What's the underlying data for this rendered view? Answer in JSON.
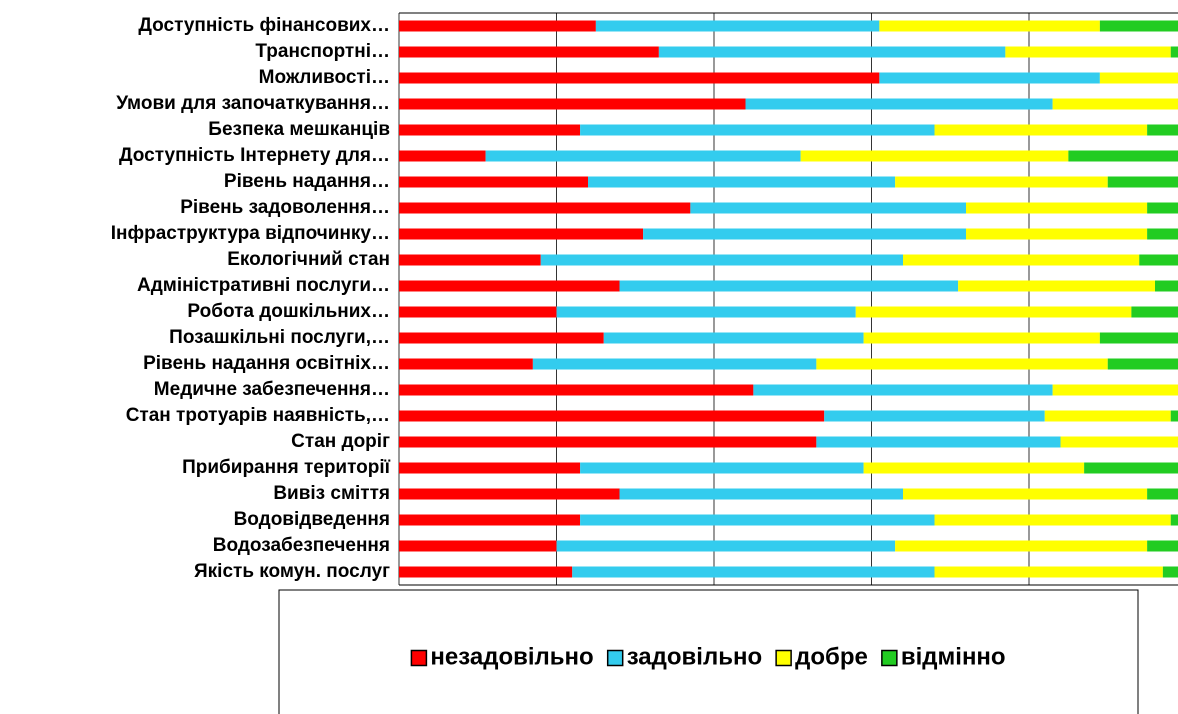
{
  "chart_data": {
    "type": "stacked_bar_horizontal",
    "categories": [
      "Доступність фінансових…",
      "Транспортні…",
      "Можливості…",
      "Умови для започаткування…",
      "Безпека мешканців",
      "Доступність Інтернету для…",
      "Рівень надання…",
      "Рівень задоволення…",
      "Інфраструктура відпочинку…",
      "Екологічний стан",
      "Адміністративні послуги…",
      "Робота дошкільних…",
      "Позашкільні послуги,…",
      "Рівень надання освітніх…",
      "Медичне забезпечення…",
      "Стан тротуарів наявність,…",
      "Стан доріг",
      "Прибирання території",
      "Вивіз сміття",
      "Водовідведення",
      "Водозабезпечення",
      "Якість комун. послуг"
    ],
    "series": [
      {
        "name": "незадовільно",
        "color": "#ff0000",
        "values": [
          25,
          33,
          61,
          44,
          23,
          11,
          24,
          37,
          31,
          18,
          28,
          20,
          26,
          17,
          45,
          54,
          53,
          23,
          28,
          23,
          20,
          22
        ]
      },
      {
        "name": "задовільно",
        "color": "#33ccee",
        "values": [
          36,
          44,
          28,
          39,
          45,
          40,
          39,
          35,
          41,
          46,
          43,
          38,
          33,
          36,
          38,
          28,
          31,
          36,
          36,
          45,
          43,
          46
        ]
      },
      {
        "name": "добре",
        "color": "#ffff00",
        "values": [
          28,
          21,
          10,
          16,
          27,
          34,
          27,
          23,
          23,
          30,
          25,
          35,
          30,
          37,
          16,
          16,
          16,
          28,
          31,
          30,
          32,
          29
        ]
      },
      {
        "name": "відмінно",
        "color": "#22cc22",
        "values": [
          11,
          2,
          1,
          1,
          5,
          15,
          10,
          5,
          5,
          6,
          4,
          7,
          11,
          10,
          1,
          2,
          0,
          13,
          5,
          2,
          5,
          3
        ]
      }
    ],
    "xlim": [
      0,
      100
    ],
    "xticks": [
      0,
      20,
      40,
      60,
      80,
      100
    ],
    "grid": true,
    "legend": "bottom"
  }
}
